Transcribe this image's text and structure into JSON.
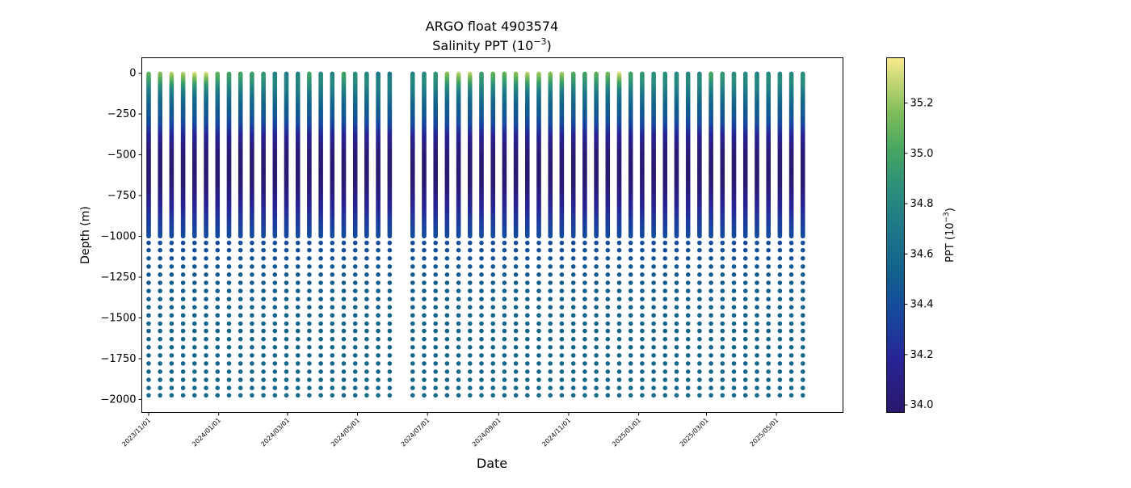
{
  "chart_data": {
    "type": "scatter",
    "title_line1": "ARGO float 4903574",
    "title_line2_prefix": "Salinity PPT (10",
    "title_line2_exp": "−3",
    "title_line2_suffix": ")",
    "xlabel": "Date",
    "ylabel": "Depth (m)",
    "colorbar_label_prefix": "PPT (10",
    "colorbar_label_exp": "−3",
    "colorbar_label_suffix": ")",
    "colormap": "haline",
    "xlim": [
      "2023-10-26",
      "2025-06-28"
    ],
    "ylim": [
      -2080,
      95
    ],
    "x_ticks": [
      "2023-11-01",
      "2024-01-01",
      "2024-03-01",
      "2024-05-01",
      "2024-07-01",
      "2024-09-01",
      "2024-11-01",
      "2025-01-01",
      "2025-03-01",
      "2025-05-01"
    ],
    "x_tick_labels": [
      "2023/11/01",
      "2024/01/01",
      "2024/03/01",
      "2024/05/01",
      "2024/07/01",
      "2024/09/01",
      "2024/11/01",
      "2025/01/01",
      "2025/03/01",
      "2025/05/01"
    ],
    "y_ticks": [
      0,
      -250,
      -500,
      -750,
      -1000,
      -1250,
      -1500,
      -1750,
      -2000
    ],
    "y_tick_labels": [
      "0",
      "−250",
      "−500",
      "−750",
      "−1000",
      "−1250",
      "−1500",
      "−1750",
      "−2000"
    ],
    "colorbar_range": [
      33.97,
      35.38
    ],
    "colorbar_ticks": [
      34.0,
      34.2,
      34.4,
      34.6,
      34.8,
      35.0,
      35.2
    ],
    "colorbar_tick_labels": [
      "34.0",
      "34.2",
      "34.4",
      "34.6",
      "34.8",
      "35.0",
      "35.2"
    ],
    "profile_dates": [
      "2023-11-01",
      "2023-11-11",
      "2023-11-21",
      "2023-12-01",
      "2023-12-11",
      "2023-12-21",
      "2023-12-31",
      "2024-01-10",
      "2024-01-20",
      "2024-01-30",
      "2024-02-09",
      "2024-02-19",
      "2024-02-29",
      "2024-03-10",
      "2024-03-20",
      "2024-03-30",
      "2024-04-09",
      "2024-04-19",
      "2024-04-29",
      "2024-05-09",
      "2024-05-19",
      "2024-05-29",
      "2024-06-18",
      "2024-06-28",
      "2024-07-08",
      "2024-07-18",
      "2024-07-28",
      "2024-08-07",
      "2024-08-17",
      "2024-08-27",
      "2024-09-06",
      "2024-09-16",
      "2024-09-26",
      "2024-10-06",
      "2024-10-16",
      "2024-10-26",
      "2024-11-05",
      "2024-11-15",
      "2024-11-25",
      "2024-12-05",
      "2024-12-15",
      "2024-12-25",
      "2025-01-04",
      "2025-01-14",
      "2025-01-24",
      "2025-02-03",
      "2025-02-13",
      "2025-02-23",
      "2025-03-05",
      "2025-03-15",
      "2025-03-25",
      "2025-04-04",
      "2025-04-14",
      "2025-04-24",
      "2025-05-04",
      "2025-05-14",
      "2025-05-24"
    ],
    "surface_salinity": [
      35.1,
      35.2,
      35.3,
      35.3,
      35.35,
      35.35,
      35.1,
      35.0,
      35.0,
      34.95,
      34.9,
      34.75,
      34.7,
      34.75,
      35.0,
      34.8,
      34.75,
      35.0,
      34.85,
      34.8,
      34.65,
      34.65,
      34.75,
      34.8,
      34.9,
      35.2,
      35.3,
      35.3,
      34.95,
      35.1,
      35.1,
      35.2,
      35.3,
      35.25,
      35.2,
      35.25,
      35.05,
      35.0,
      35.1,
      35.15,
      35.35,
      35.0,
      34.9,
      34.85,
      34.85,
      34.8,
      34.8,
      34.8,
      35.0,
      34.9,
      34.85,
      34.8,
      34.75,
      34.8,
      34.8,
      34.8,
      34.85
    ],
    "depth_salinity_profile": [
      {
        "depth": 0,
        "salinity": 34.95
      },
      {
        "depth": -100,
        "salinity": 34.75
      },
      {
        "depth": -200,
        "salinity": 34.55
      },
      {
        "depth": -300,
        "salinity": 34.4
      },
      {
        "depth": -400,
        "salinity": 34.15
      },
      {
        "depth": -500,
        "salinity": 34.02
      },
      {
        "depth": -600,
        "salinity": 33.99
      },
      {
        "depth": -700,
        "salinity": 34.02
      },
      {
        "depth": -800,
        "salinity": 34.15
      },
      {
        "depth": -900,
        "salinity": 34.28
      },
      {
        "depth": -1000,
        "salinity": 34.38
      },
      {
        "depth": -1200,
        "salinity": 34.48
      },
      {
        "depth": -1500,
        "salinity": 34.55
      },
      {
        "depth": -2000,
        "salinity": 34.6
      }
    ],
    "deep_sample_depths": [
      -1040,
      -1085,
      -1135,
      -1185,
      -1235,
      -1285,
      -1335,
      -1385,
      -1435,
      -1485,
      -1535,
      -1580,
      -1630,
      -1680,
      -1730,
      -1780,
      -1830,
      -1880,
      -1930,
      -1975
    ],
    "grid": false,
    "legend": "none"
  }
}
